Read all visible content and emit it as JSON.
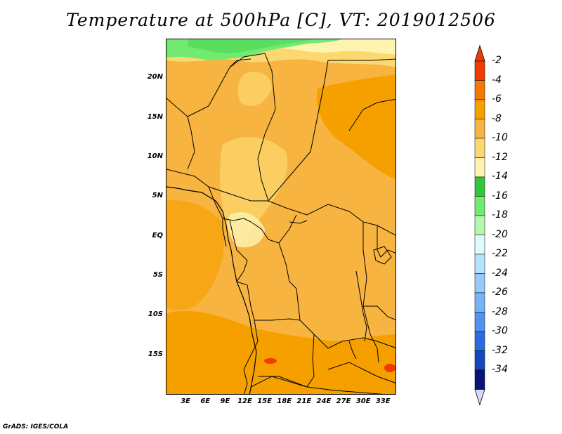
{
  "title": "Temperature at 500hPa [C], VT: 2019012506",
  "credit": "GrADS: IGES/COLA",
  "map": {
    "projection": "lat-lon",
    "lon_range": [
      0,
      35
    ],
    "lat_range": [
      -20,
      25
    ],
    "region": "Central Africa",
    "lat_ticks": [
      {
        "label": "20N",
        "lat": 20
      },
      {
        "label": "15N",
        "lat": 15
      },
      {
        "label": "10N",
        "lat": 10
      },
      {
        "label": "5N",
        "lat": 5
      },
      {
        "label": "EQ",
        "lat": 0
      },
      {
        "label": "5S",
        "lat": -5
      },
      {
        "label": "10S",
        "lat": -10
      },
      {
        "label": "15S",
        "lat": -15
      }
    ],
    "lon_ticks": [
      {
        "label": "3E",
        "lon": 3
      },
      {
        "label": "6E",
        "lon": 6
      },
      {
        "label": "9E",
        "lon": 9
      },
      {
        "label": "12E",
        "lon": 12
      },
      {
        "label": "15E",
        "lon": 15
      },
      {
        "label": "18E",
        "lon": 18
      },
      {
        "label": "21E",
        "lon": 21
      },
      {
        "label": "24E",
        "lon": 24
      },
      {
        "label": "27E",
        "lon": 27
      },
      {
        "label": "30E",
        "lon": 30
      },
      {
        "label": "33E",
        "lon": 33
      }
    ]
  },
  "colorbar": {
    "bins": [
      {
        "color": "#f03c00",
        "label": "-2"
      },
      {
        "color": "#f57800",
        "label": "-4"
      },
      {
        "color": "#f6a000",
        "label": "-6"
      },
      {
        "color": "#f8b440",
        "label": "-8"
      },
      {
        "color": "#fcd870",
        "label": "-10"
      },
      {
        "color": "#fef4b0",
        "label": "-12"
      },
      {
        "color": "#2ec83a",
        "label": "-14"
      },
      {
        "color": "#72ea72",
        "label": "-16"
      },
      {
        "color": "#b4f8b0",
        "label": "-18"
      },
      {
        "color": "#e0fcf8",
        "label": "-20"
      },
      {
        "color": "#b4e4fc",
        "label": "-22"
      },
      {
        "color": "#96cafa",
        "label": "-24"
      },
      {
        "color": "#78b2f8",
        "label": "-26"
      },
      {
        "color": "#5094f0",
        "label": "-28"
      },
      {
        "color": "#2a6ce0",
        "label": "-30"
      },
      {
        "color": "#1448c0",
        "label": "-32"
      },
      {
        "color": "#0a1478",
        "label": "-34"
      }
    ],
    "over_color": "#f03c00",
    "under_color": "#d8d8f8"
  }
}
